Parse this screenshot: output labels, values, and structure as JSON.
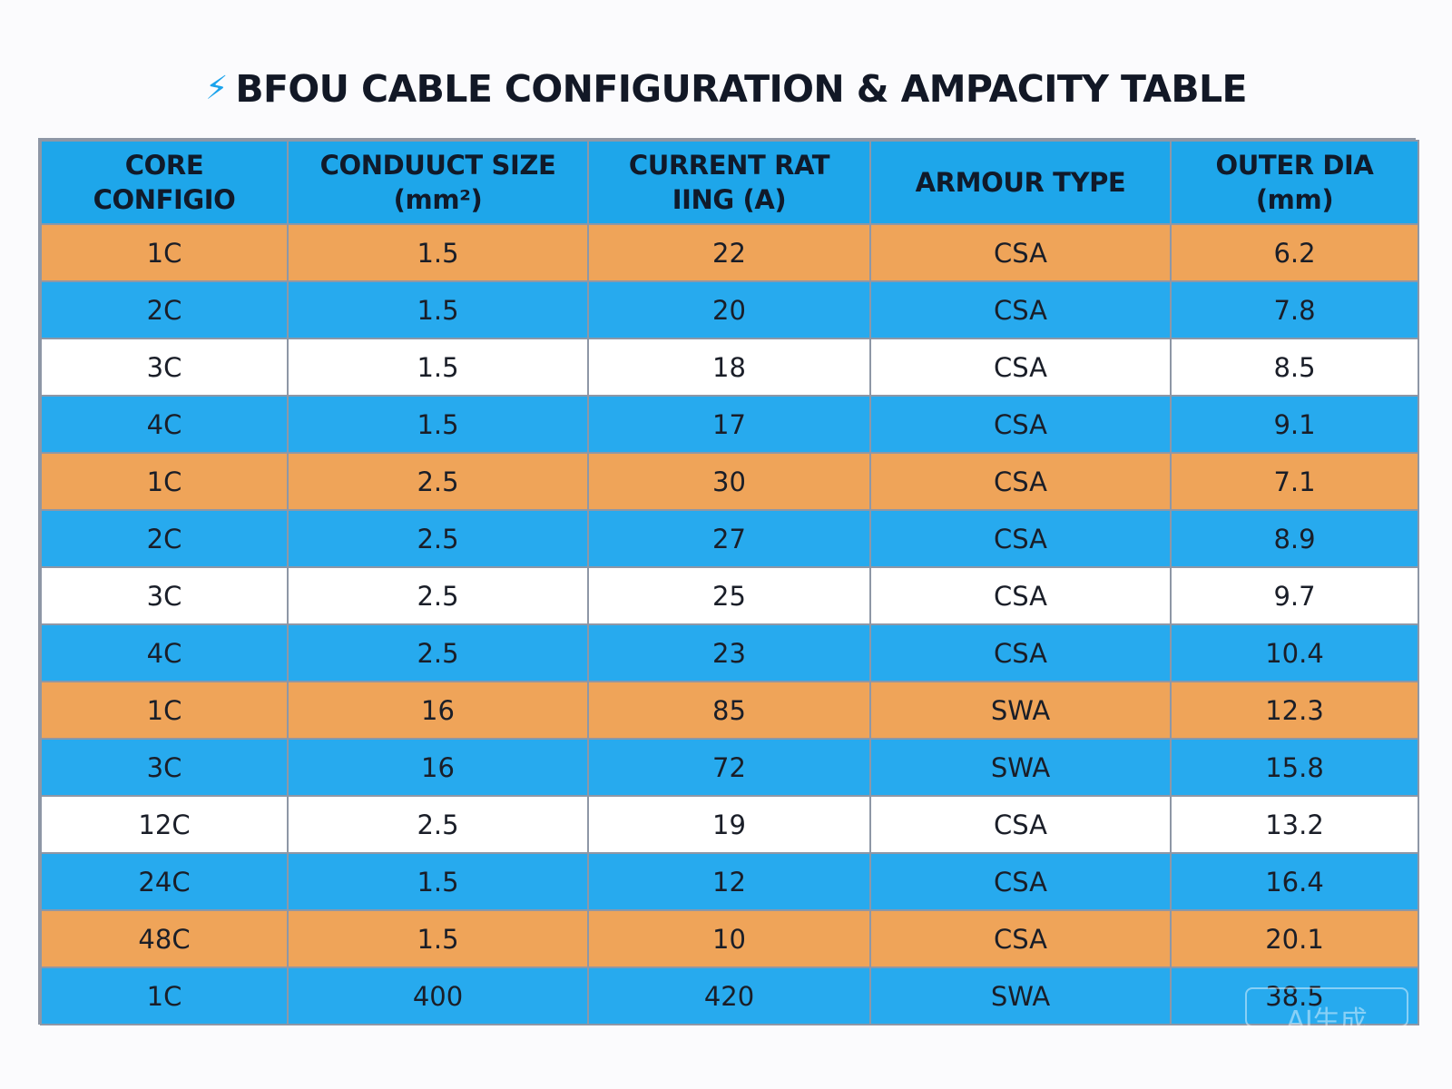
{
  "title": {
    "icon": "electric-plug-icon",
    "text": "BFOU CABLE CONFIGURATION & AMPACITY TABLE"
  },
  "chart_data": {
    "type": "table",
    "title": "BFOU CABLE CONFIGURATION & AMPACITY TABLE",
    "columns": [
      "CORE CONFIGIO",
      "CONDUUCT SIZE (mm²)",
      "CURRENT RATIING (A)",
      "ARMOUR TYPE",
      "OUTER DIA (mm)"
    ],
    "rows": [
      [
        "1C",
        "1.5",
        "22",
        "CSA",
        "6.2"
      ],
      [
        "2C",
        "1.5",
        "20",
        "CSA",
        "7.8"
      ],
      [
        "3C",
        "1.5",
        "18",
        "CSA",
        "8.5"
      ],
      [
        "4C",
        "1.5",
        "17",
        "CSA",
        "9.1"
      ],
      [
        "1C",
        "2.5",
        "30",
        "CSA",
        "7.1"
      ],
      [
        "2C",
        "2.5",
        "27",
        "CSA",
        "8.9"
      ],
      [
        "3C",
        "2.5",
        "25",
        "CSA",
        "9.7"
      ],
      [
        "4C",
        "2.5",
        "23",
        "CSA",
        "10.4"
      ],
      [
        "1C",
        "16",
        "85",
        "SWA",
        "12.3"
      ],
      [
        "3C",
        "16",
        "72",
        "SWA",
        "15.8"
      ],
      [
        "12C",
        "2.5",
        "19",
        "CSA",
        "13.2"
      ],
      [
        "24C",
        "1.5",
        "12",
        "CSA",
        "16.4"
      ],
      [
        "48C",
        "1.5",
        "10",
        "CSA",
        "20.1"
      ],
      [
        "1C",
        "400",
        "420",
        "SWA",
        "38.5"
      ]
    ],
    "row_colors": [
      "orange",
      "blue",
      "white",
      "blue",
      "orange",
      "blue",
      "white",
      "blue",
      "orange",
      "blue",
      "white",
      "blue",
      "orange",
      "blue"
    ]
  },
  "headers": {
    "core_line1": "CORE",
    "core_line2": "CONFIGIO",
    "size_line1": "CONDUUCT SIZE",
    "size_line2": "(mm²)",
    "current_line1": "CURRENT RAT",
    "current_line2": "IING (A)",
    "armour": "ARMOUR TYPE",
    "outer_dia": "OUTER DIA (mm)"
  },
  "colors": {
    "header_blue": "#1ea6ea",
    "row_blue": "#27aaee",
    "row_orange": "#efa459",
    "row_white": "#ffffff",
    "icon_blue": "#1aa3ec"
  },
  "watermark": "AI生成"
}
